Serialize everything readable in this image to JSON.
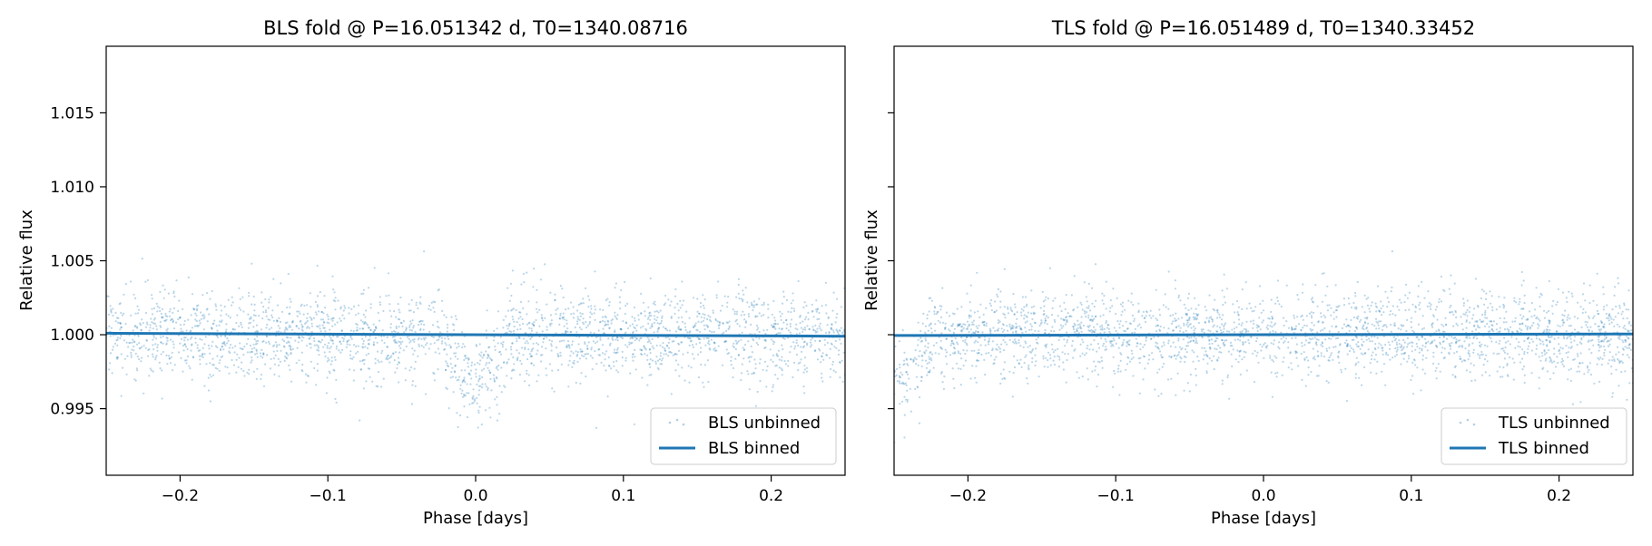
{
  "chart_data": [
    {
      "type": "scatter",
      "title": "BLS fold @ P=16.051342 d, T0=1340.08716",
      "xlabel": "Phase [days]",
      "ylabel": "Relative flux",
      "xlim": [
        -0.25,
        0.25
      ],
      "ylim": [
        0.9905,
        1.0195
      ],
      "xticks": [
        -0.2,
        -0.1,
        0.0,
        0.1,
        0.2
      ],
      "xtick_labels": [
        "−0.2",
        "−0.1",
        "0.0",
        "0.1",
        "0.2"
      ],
      "yticks": [
        0.995,
        1.0,
        1.005,
        1.01,
        1.015
      ],
      "ytick_labels": [
        "0.995",
        "1.000",
        "1.005",
        "1.010",
        "1.015"
      ],
      "legend_position": "lower-right",
      "grid": false,
      "transit": {
        "center": 0.0,
        "half_width": 0.022,
        "depth": 0.003
      },
      "scatter_sigma": 0.0015,
      "series": [
        {
          "name": "BLS unbinned",
          "kind": "scatter",
          "color": "#1f77b4",
          "n_points": 2600
        },
        {
          "name": "BLS binned",
          "kind": "line",
          "color": "#1f77b4",
          "x": [
            -0.25,
            0.25
          ],
          "y": [
            1.0001,
            0.9999
          ]
        }
      ]
    },
    {
      "type": "scatter",
      "title": "TLS fold @ P=16.051489 d, T0=1340.33452",
      "xlabel": "Phase [days]",
      "ylabel": "Relative flux",
      "xlim": [
        -0.25,
        0.25
      ],
      "ylim": [
        0.9905,
        1.0195
      ],
      "xticks": [
        -0.2,
        -0.1,
        0.0,
        0.1,
        0.2
      ],
      "xtick_labels": [
        "−0.2",
        "−0.1",
        "0.0",
        "0.1",
        "0.2"
      ],
      "yticks": [
        0.995,
        1.0,
        1.005,
        1.01,
        1.015
      ],
      "ytick_labels": [],
      "legend_position": "lower-right",
      "grid": false,
      "transit": {
        "center": -0.245,
        "half_width": 0.02,
        "depth": 0.003
      },
      "scatter_sigma": 0.0015,
      "series": [
        {
          "name": "TLS unbinned",
          "kind": "scatter",
          "color": "#1f77b4",
          "n_points": 2600
        },
        {
          "name": "TLS binned",
          "kind": "line",
          "color": "#1f77b4",
          "x": [
            -0.25,
            0.25
          ],
          "y": [
            0.99995,
            1.00005
          ]
        }
      ]
    }
  ]
}
